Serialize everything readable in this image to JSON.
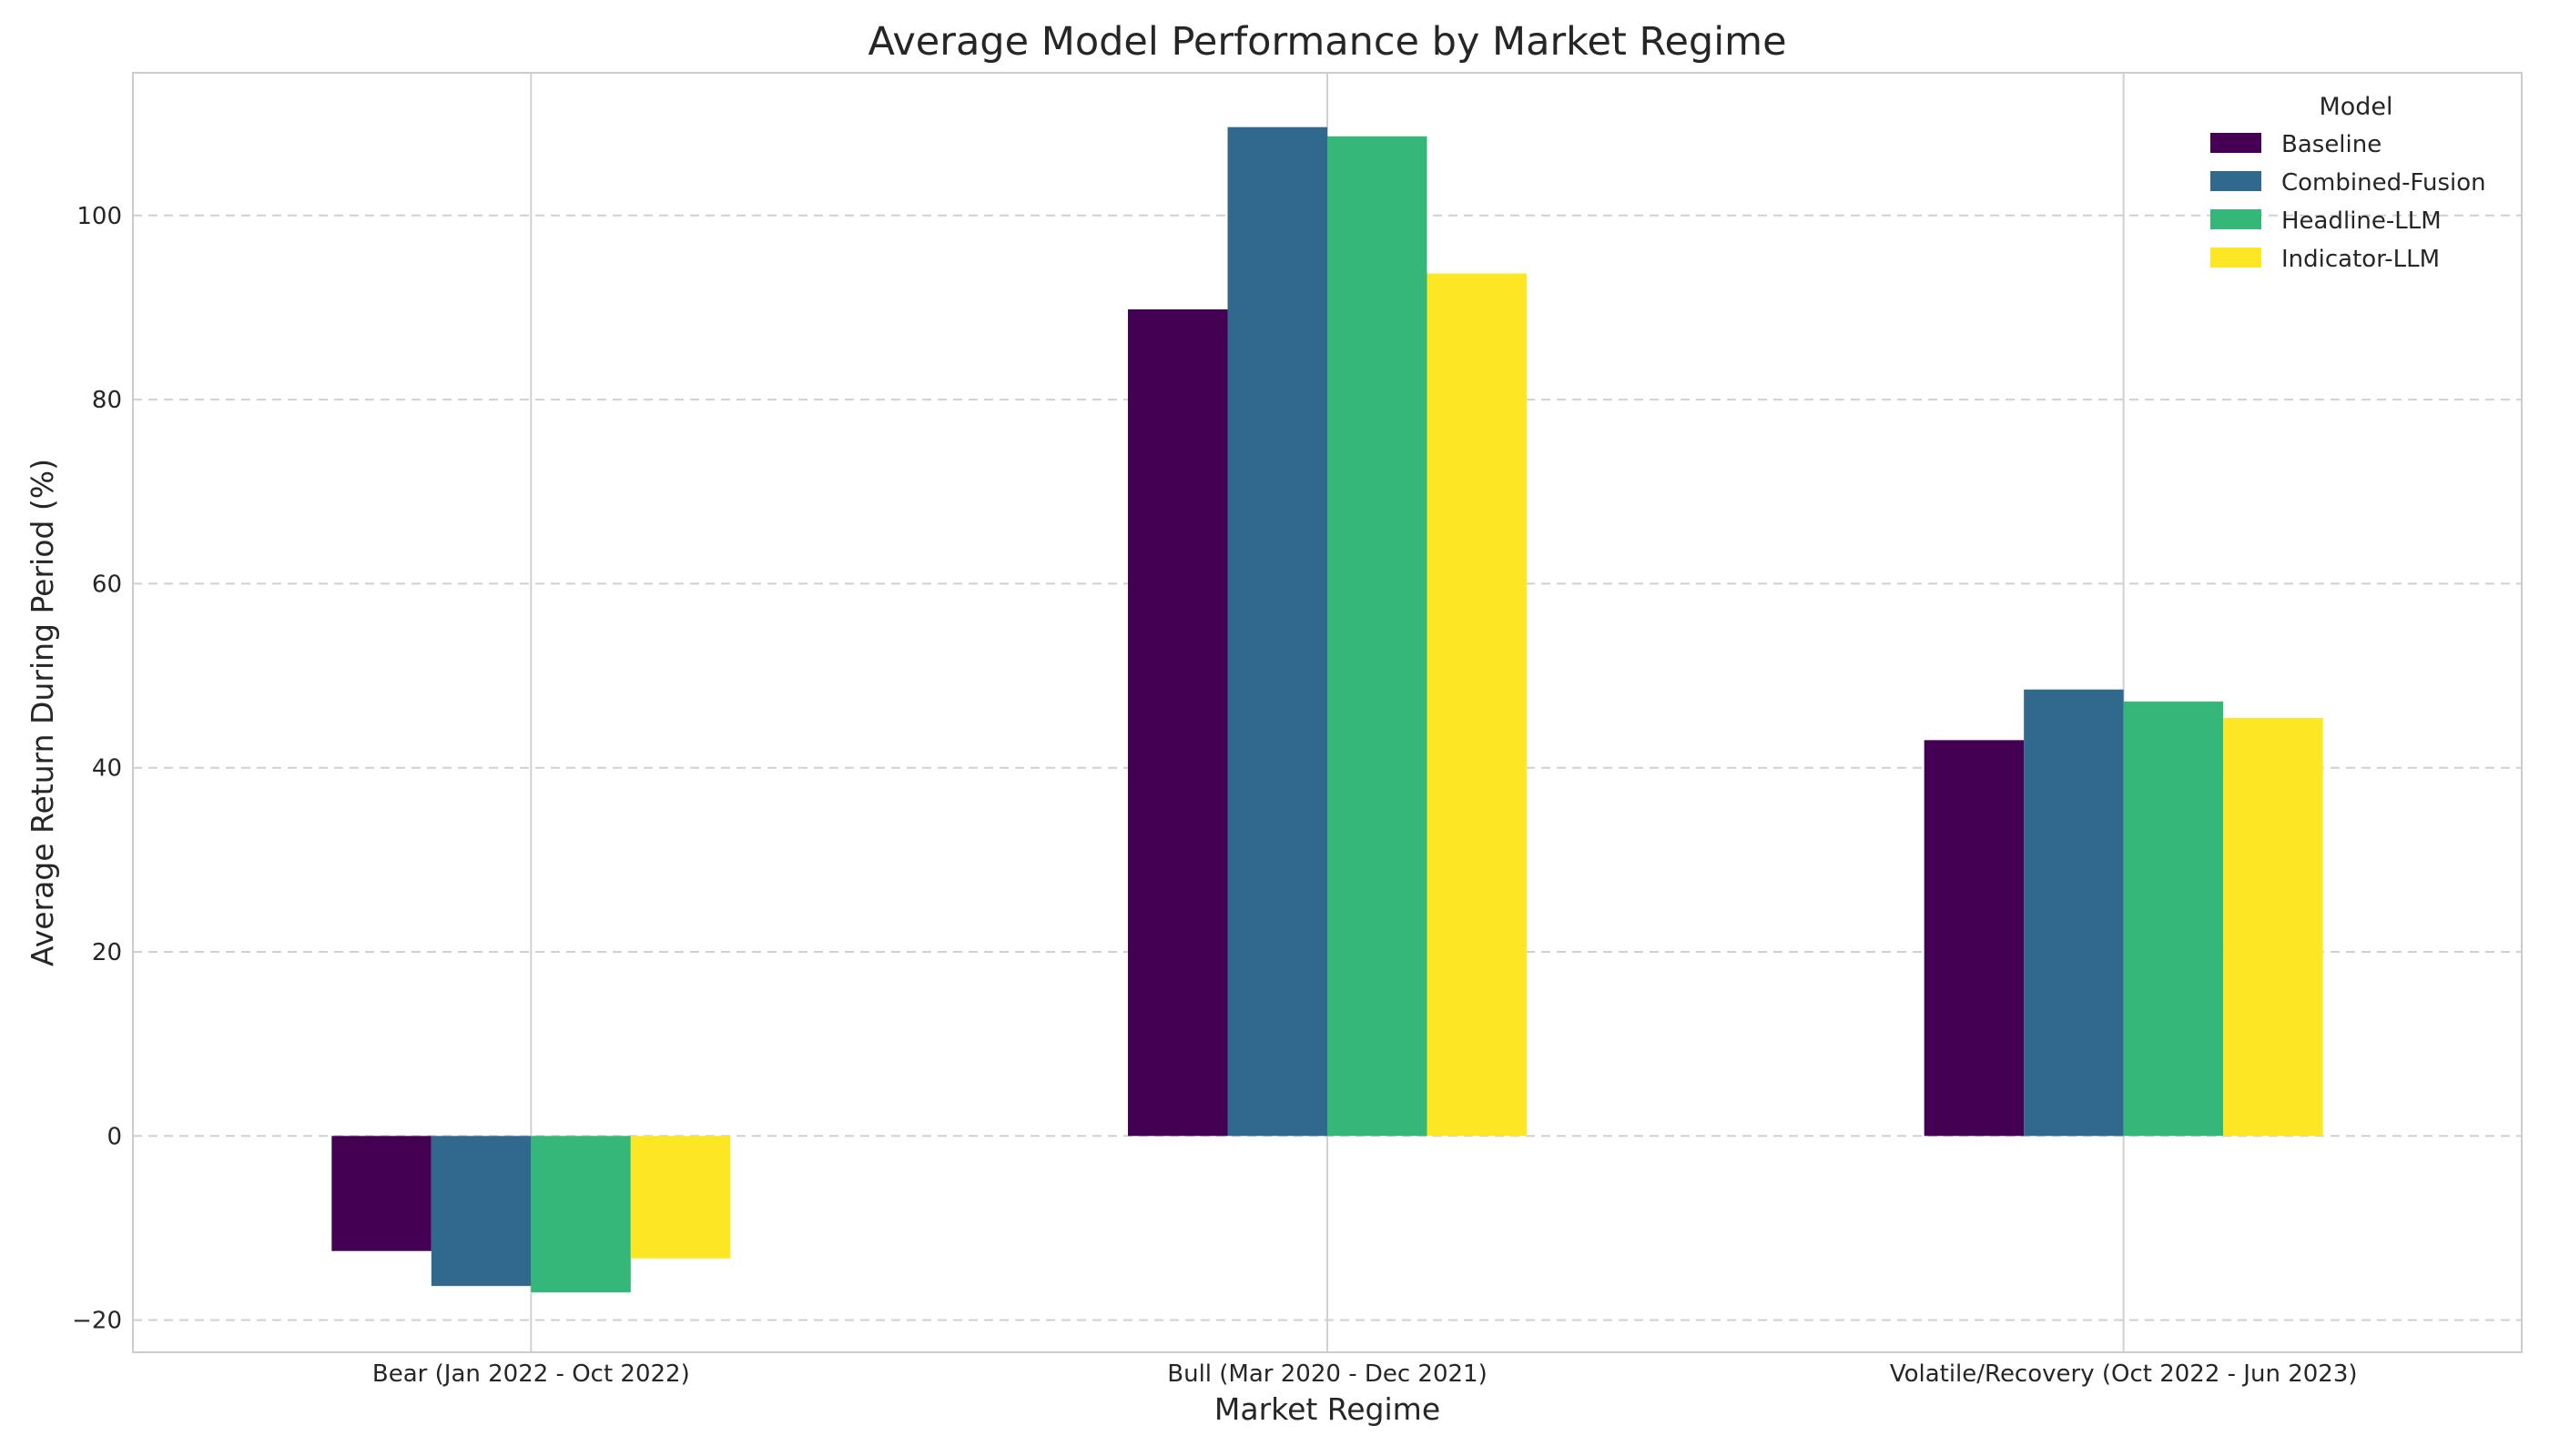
{
  "chart_data": {
    "type": "bar",
    "title": "Average Model Performance by Market Regime",
    "xlabel": "Market Regime",
    "ylabel": "Average Return During Period (%)",
    "categories": [
      "Bear (Jan 2022 - Oct 2022)",
      "Bull (Mar 2020 - Dec 2021)",
      "Volatile/Recovery (Oct 2022 - Jun 2023)"
    ],
    "series": [
      {
        "name": "Baseline",
        "color": "#440154",
        "values": [
          -12.5,
          89.8,
          43.0
        ]
      },
      {
        "name": "Combined-Fusion",
        "color": "#31688e",
        "values": [
          -16.3,
          109.6,
          48.5
        ]
      },
      {
        "name": "Headline-LLM",
        "color": "#35b779",
        "values": [
          -17.0,
          108.6,
          47.2
        ]
      },
      {
        "name": "Indicator-LLM",
        "color": "#fde725",
        "values": [
          -13.3,
          93.7,
          45.4
        ]
      }
    ],
    "ylim": [
      -23.5,
      115.5
    ],
    "yticks": [
      -20,
      0,
      20,
      40,
      60,
      80,
      100
    ],
    "ytick_labels": [
      "−20",
      "0",
      "20",
      "40",
      "60",
      "80",
      "100"
    ],
    "grid": true,
    "legend": {
      "title": "Model",
      "placement": "top-right"
    }
  }
}
